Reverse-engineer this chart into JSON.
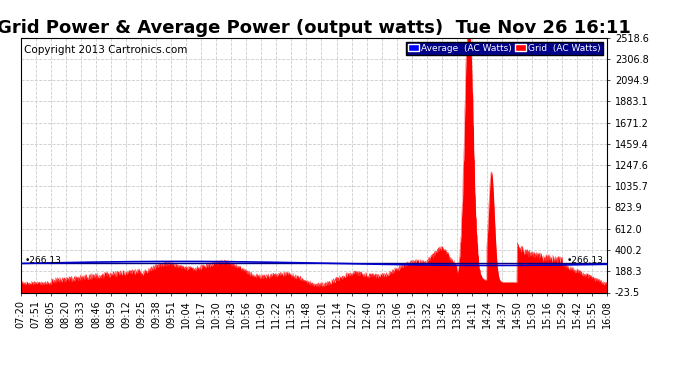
{
  "title": "Grid Power & Average Power (output watts)  Tue Nov 26 16:11",
  "copyright": "Copyright 2013 Cartronics.com",
  "legend_labels": [
    "Average  (AC Watts)",
    "Grid  (AC Watts)"
  ],
  "legend_colors": [
    "#0000ff",
    "#ff0000"
  ],
  "avg_line_color": "#0000cc",
  "grid_fill_color": "#ff0000",
  "background_color": "#ffffff",
  "plot_bg_color": "#ffffff",
  "hline_value": 266.13,
  "hline_color": "#000080",
  "ylim": [
    -23.5,
    2518.6
  ],
  "yticks": [
    2518.6,
    2306.8,
    2094.9,
    1883.1,
    1671.2,
    1459.4,
    1247.6,
    1035.7,
    823.9,
    612.0,
    400.2,
    188.3,
    -23.5
  ],
  "title_fontsize": 13,
  "copyright_fontsize": 7.5,
  "tick_fontsize": 7,
  "grid_color": "#cccccc",
  "grid_linestyle": "--",
  "x_labels": [
    "07:20",
    "07:51",
    "08:05",
    "08:20",
    "08:33",
    "08:46",
    "08:59",
    "09:12",
    "09:25",
    "09:38",
    "09:51",
    "10:04",
    "10:17",
    "10:30",
    "10:43",
    "10:56",
    "11:09",
    "11:22",
    "11:35",
    "11:48",
    "12:01",
    "12:14",
    "12:27",
    "12:40",
    "12:53",
    "13:06",
    "13:19",
    "13:32",
    "13:45",
    "13:58",
    "14:11",
    "14:24",
    "14:37",
    "14:50",
    "15:03",
    "15:16",
    "15:29",
    "15:42",
    "15:55",
    "16:08"
  ]
}
